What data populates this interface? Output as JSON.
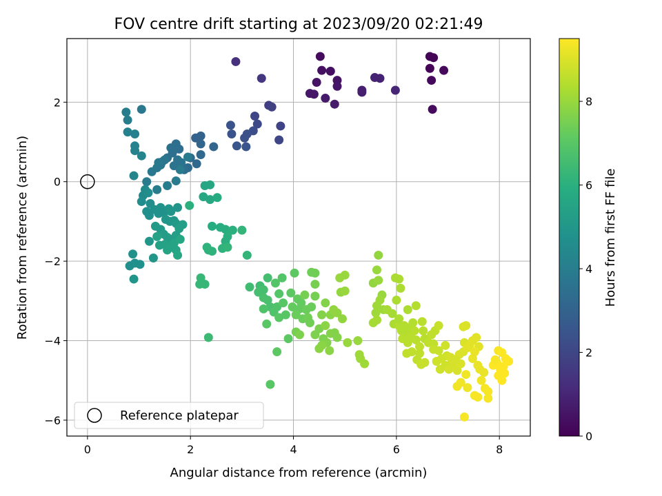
{
  "chart_data": {
    "type": "scatter",
    "title": "FOV centre drift starting at 2023/09/20 02:21:49",
    "xlabel": "Angular distance from reference (arcmin)",
    "ylabel": "Rotation from reference (arcmin)",
    "xlim": [
      -0.4,
      8.6
    ],
    "ylim": [
      -6.4,
      3.6
    ],
    "xticks": [
      0,
      2,
      4,
      6,
      8
    ],
    "xtick_labels": [
      "0",
      "2",
      "4",
      "6",
      "8"
    ],
    "yticks": [
      -6,
      -4,
      -2,
      0,
      2
    ],
    "ytick_labels": [
      "−6",
      "−4",
      "−2",
      "0",
      "2"
    ],
    "grid": true,
    "colorbar": {
      "label": "Hours from first FF file",
      "range": [
        0,
        9.5
      ],
      "ticks": [
        0,
        2,
        4,
        6,
        8
      ],
      "tick_labels": [
        "0",
        "2",
        "4",
        "6",
        "8"
      ],
      "colormap": "viridis"
    },
    "legend": {
      "placement": "lower-left",
      "entries": [
        "Reference platepar"
      ]
    },
    "reference_point": {
      "x": 0,
      "y": 0
    },
    "points": [
      [
        6.65,
        3.15,
        0.1
      ],
      [
        6.72,
        3.12,
        0.1
      ],
      [
        6.65,
        2.85,
        0.1
      ],
      [
        6.92,
        2.8,
        0.2
      ],
      [
        6.68,
        2.55,
        0.2
      ],
      [
        6.7,
        1.82,
        0.3
      ],
      [
        4.52,
        3.15,
        0.3
      ],
      [
        4.55,
        2.8,
        0.4
      ],
      [
        4.72,
        2.78,
        0.4
      ],
      [
        4.45,
        2.5,
        0.5
      ],
      [
        4.85,
        2.55,
        0.5
      ],
      [
        4.85,
        2.4,
        0.6
      ],
      [
        4.32,
        2.22,
        0.6
      ],
      [
        4.4,
        2.2,
        0.6
      ],
      [
        4.62,
        2.1,
        0.7
      ],
      [
        4.8,
        1.95,
        0.7
      ],
      [
        5.33,
        2.3,
        0.8
      ],
      [
        5.33,
        2.25,
        0.8
      ],
      [
        5.58,
        2.62,
        0.9
      ],
      [
        5.68,
        2.6,
        0.9
      ],
      [
        5.98,
        2.3,
        1.0
      ],
      [
        2.88,
        3.02,
        1.3
      ],
      [
        3.38,
        2.6,
        1.5
      ],
      [
        3.52,
        1.92,
        1.7
      ],
      [
        3.58,
        1.88,
        1.8
      ],
      [
        3.75,
        1.4,
        1.9
      ],
      [
        3.72,
        1.05,
        2.0
      ],
      [
        3.25,
        1.65,
        2.0
      ],
      [
        3.3,
        1.45,
        2.1
      ],
      [
        3.22,
        1.28,
        2.2
      ],
      [
        3.1,
        1.2,
        2.3
      ],
      [
        3.05,
        1.1,
        2.3
      ],
      [
        2.78,
        1.42,
        2.4
      ],
      [
        2.8,
        1.2,
        2.4
      ],
      [
        2.9,
        0.9,
        2.5
      ],
      [
        3.08,
        0.88,
        2.5
      ],
      [
        0.75,
        1.75,
        4.0
      ],
      [
        0.78,
        1.55,
        4.0
      ],
      [
        1.05,
        1.82,
        3.8
      ],
      [
        0.78,
        1.25,
        4.1
      ],
      [
        0.92,
        1.2,
        4.1
      ],
      [
        0.92,
        0.9,
        4.2
      ],
      [
        0.92,
        0.78,
        4.2
      ],
      [
        1.05,
        0.65,
        4.3
      ],
      [
        0.9,
        0.15,
        4.3
      ],
      [
        2.1,
        1.1,
        3.0
      ],
      [
        2.2,
        1.15,
        3.0
      ],
      [
        2.2,
        0.95,
        3.1
      ],
      [
        2.45,
        0.88,
        3.1
      ],
      [
        2.2,
        0.68,
        3.2
      ],
      [
        2.12,
        0.45,
        3.2
      ],
      [
        2.0,
        0.6,
        3.3
      ],
      [
        1.95,
        0.35,
        3.3
      ],
      [
        1.88,
        0.3,
        3.4
      ],
      [
        1.72,
        0.95,
        3.4
      ],
      [
        1.78,
        0.82,
        3.4
      ],
      [
        1.62,
        0.85,
        3.5
      ],
      [
        1.55,
        0.6,
        3.5
      ],
      [
        1.65,
        0.72,
        3.5
      ],
      [
        1.75,
        0.55,
        3.6
      ],
      [
        1.82,
        0.48,
        3.6
      ],
      [
        1.68,
        0.4,
        3.6
      ],
      [
        1.5,
        0.55,
        3.7
      ],
      [
        1.45,
        0.5,
        3.7
      ],
      [
        1.42,
        0.42,
        3.7
      ],
      [
        1.38,
        0.48,
        3.8
      ],
      [
        1.35,
        0.35,
        3.8
      ],
      [
        1.25,
        0.25,
        3.8
      ],
      [
        1.15,
        0.0,
        3.9
      ],
      [
        1.35,
        -0.2,
        4.0
      ],
      [
        1.55,
        -0.1,
        4.0
      ],
      [
        1.72,
        0.02,
        3.9
      ],
      [
        1.8,
        0.3,
        3.9
      ],
      [
        1.95,
        0.62,
        3.9
      ],
      [
        1.08,
        -0.35,
        4.5
      ],
      [
        1.12,
        -0.2,
        4.5
      ],
      [
        1.18,
        -0.28,
        4.6
      ],
      [
        1.05,
        -0.5,
        4.6
      ],
      [
        1.22,
        -0.55,
        4.6
      ],
      [
        1.3,
        -0.7,
        4.7
      ],
      [
        1.15,
        -0.75,
        4.7
      ],
      [
        1.2,
        -0.85,
        4.7
      ],
      [
        1.42,
        -0.65,
        4.8
      ],
      [
        1.38,
        -0.8,
        4.8
      ],
      [
        1.48,
        -0.78,
        4.8
      ],
      [
        1.58,
        -0.68,
        4.9
      ],
      [
        1.62,
        -0.75,
        4.9
      ],
      [
        1.75,
        -0.65,
        4.9
      ],
      [
        1.52,
        -0.95,
        5.0
      ],
      [
        1.6,
        -1.0,
        5.0
      ],
      [
        1.68,
        -0.98,
        5.0
      ],
      [
        1.72,
        -1.05,
        5.1
      ],
      [
        1.32,
        -1.12,
        5.1
      ],
      [
        1.42,
        -1.2,
        5.1
      ],
      [
        1.48,
        -1.32,
        5.2
      ],
      [
        1.55,
        -1.4,
        5.2
      ],
      [
        1.62,
        -1.45,
        5.2
      ],
      [
        1.72,
        -1.35,
        5.3
      ],
      [
        1.78,
        -1.18,
        5.3
      ],
      [
        1.85,
        -1.08,
        5.3
      ],
      [
        1.35,
        -1.38,
        5.4
      ],
      [
        1.4,
        -1.6,
        5.4
      ],
      [
        1.5,
        -1.58,
        5.4
      ],
      [
        1.55,
        -1.72,
        5.5
      ],
      [
        1.62,
        -1.65,
        5.5
      ],
      [
        1.72,
        -1.72,
        5.5
      ],
      [
        1.68,
        -1.55,
        5.5
      ],
      [
        1.75,
        -1.85,
        5.6
      ],
      [
        1.8,
        -1.45,
        5.6
      ],
      [
        1.2,
        -1.5,
        5.0
      ],
      [
        1.28,
        -1.92,
        5.0
      ],
      [
        0.88,
        -1.82,
        4.8
      ],
      [
        0.92,
        -2.05,
        4.8
      ],
      [
        0.82,
        -2.12,
        4.7
      ],
      [
        1.02,
        -2.08,
        4.7
      ],
      [
        0.9,
        -2.45,
        4.9
      ],
      [
        2.28,
        -0.1,
        5.6
      ],
      [
        2.38,
        -0.08,
        5.6
      ],
      [
        2.25,
        -0.38,
        5.7
      ],
      [
        2.38,
        -0.45,
        5.7
      ],
      [
        2.52,
        -0.4,
        5.8
      ],
      [
        2.42,
        -1.12,
        5.8
      ],
      [
        2.58,
        -1.15,
        5.9
      ],
      [
        2.68,
        -1.2,
        5.9
      ],
      [
        2.82,
        -1.22,
        6.0
      ],
      [
        2.72,
        -1.38,
        6.0
      ],
      [
        2.68,
        -1.5,
        6.0
      ],
      [
        2.35,
        -1.72,
        6.1
      ],
      [
        2.42,
        -1.75,
        6.1
      ],
      [
        2.62,
        -1.68,
        6.1
      ],
      [
        2.72,
        -1.65,
        6.2
      ],
      [
        3.0,
        -1.22,
        6.2
      ],
      [
        3.1,
        -1.85,
        6.2
      ],
      [
        2.2,
        -2.42,
        6.3
      ],
      [
        2.18,
        -2.58,
        6.3
      ],
      [
        2.28,
        -2.58,
        6.3
      ],
      [
        2.35,
        -3.92,
        6.4
      ],
      [
        2.32,
        -1.65,
        6.1
      ],
      [
        1.98,
        -0.6,
        6.0
      ],
      [
        3.15,
        -2.65,
        6.5
      ],
      [
        3.35,
        -2.62,
        6.5
      ],
      [
        3.5,
        -2.42,
        6.6
      ],
      [
        3.42,
        -2.72,
        6.6
      ],
      [
        3.32,
        -2.78,
        6.6
      ],
      [
        3.42,
        -2.92,
        6.7
      ],
      [
        3.5,
        -2.98,
        6.7
      ],
      [
        3.55,
        -3.15,
        6.7
      ],
      [
        3.42,
        -3.2,
        6.8
      ],
      [
        3.62,
        -3.28,
        6.8
      ],
      [
        3.68,
        -3.15,
        6.8
      ],
      [
        3.72,
        -2.82,
        6.9
      ],
      [
        3.78,
        -2.42,
        6.9
      ],
      [
        3.65,
        -2.55,
        6.9
      ],
      [
        3.8,
        -3.05,
        7.0
      ],
      [
        3.72,
        -3.42,
        7.0
      ],
      [
        3.85,
        -3.35,
        7.0
      ],
      [
        3.48,
        -3.58,
        7.0
      ],
      [
        3.9,
        -3.95,
        7.1
      ],
      [
        3.55,
        -5.1,
        7.0
      ],
      [
        3.68,
        -4.28,
        7.1
      ],
      [
        4.02,
        -2.3,
        7.1
      ],
      [
        3.95,
        -2.8,
        7.1
      ],
      [
        4.08,
        -2.95,
        7.2
      ],
      [
        4.15,
        -3.05,
        7.2
      ],
      [
        3.98,
        -3.15,
        7.2
      ],
      [
        4.12,
        -3.2,
        7.2
      ],
      [
        4.25,
        -3.22,
        7.3
      ],
      [
        4.35,
        -3.15,
        7.3
      ],
      [
        4.05,
        -3.35,
        7.3
      ],
      [
        4.18,
        -3.45,
        7.3
      ],
      [
        4.28,
        -3.42,
        7.4
      ],
      [
        4.32,
        -3.55,
        7.4
      ],
      [
        4.35,
        -2.28,
        7.4
      ],
      [
        4.42,
        -2.3,
        7.4
      ],
      [
        4.42,
        -2.58,
        7.5
      ],
      [
        4.42,
        -2.88,
        7.5
      ],
      [
        4.22,
        -2.85,
        7.5
      ],
      [
        4.05,
        -3.78,
        7.5
      ],
      [
        4.12,
        -3.85,
        7.6
      ],
      [
        4.5,
        -3.7,
        7.6
      ],
      [
        4.42,
        -3.85,
        7.6
      ],
      [
        4.58,
        -3.95,
        7.6
      ],
      [
        4.72,
        -3.82,
        7.7
      ],
      [
        4.8,
        -3.8,
        7.7
      ],
      [
        4.85,
        -3.92,
        7.7
      ],
      [
        4.65,
        -4.05,
        7.7
      ],
      [
        4.55,
        -4.12,
        7.8
      ],
      [
        4.5,
        -4.2,
        7.8
      ],
      [
        4.7,
        -4.25,
        7.8
      ],
      [
        4.62,
        -3.62,
        7.8
      ],
      [
        4.72,
        -3.35,
        7.8
      ],
      [
        4.78,
        -3.22,
        7.9
      ],
      [
        4.85,
        -3.3,
        7.9
      ],
      [
        4.95,
        -3.45,
        7.9
      ],
      [
        4.92,
        -2.78,
        7.9
      ],
      [
        5.0,
        -2.75,
        8.0
      ],
      [
        4.9,
        -2.42,
        8.0
      ],
      [
        5.0,
        -2.35,
        8.0
      ],
      [
        5.05,
        -4.05,
        8.0
      ],
      [
        5.25,
        -4.0,
        8.0
      ],
      [
        5.3,
        -4.45,
        8.1
      ],
      [
        5.38,
        -4.58,
        8.1
      ],
      [
        4.62,
        -3.05,
        7.7
      ],
      [
        4.55,
        -3.35,
        7.7
      ],
      [
        5.28,
        -4.35,
        8.1
      ],
      [
        5.65,
        -1.85,
        7.9
      ],
      [
        5.55,
        -2.55,
        7.9
      ],
      [
        5.65,
        -2.48,
        8.0
      ],
      [
        5.62,
        -2.22,
        8.0
      ],
      [
        5.72,
        -2.85,
        8.0
      ],
      [
        5.68,
        -2.98,
        8.1
      ],
      [
        5.62,
        -3.12,
        8.1
      ],
      [
        5.6,
        -3.3,
        8.1
      ],
      [
        5.75,
        -3.22,
        8.1
      ],
      [
        5.55,
        -3.55,
        8.2
      ],
      [
        5.62,
        -3.48,
        8.2
      ],
      [
        5.82,
        -3.22,
        8.2
      ],
      [
        5.92,
        -3.32,
        8.2
      ],
      [
        5.98,
        -2.42,
        8.3
      ],
      [
        6.05,
        -2.45,
        8.3
      ],
      [
        6.08,
        -2.68,
        8.3
      ],
      [
        6.0,
        -2.98,
        8.3
      ],
      [
        5.95,
        -3.58,
        8.3
      ],
      [
        6.05,
        -3.62,
        8.4
      ],
      [
        6.1,
        -3.75,
        8.4
      ],
      [
        6.18,
        -3.82,
        8.4
      ],
      [
        6.25,
        -3.68,
        8.4
      ],
      [
        6.32,
        -3.55,
        8.4
      ],
      [
        6.35,
        -3.75,
        8.5
      ],
      [
        6.12,
        -3.95,
        8.5
      ],
      [
        6.22,
        -4.05,
        8.5
      ],
      [
        6.28,
        -3.9,
        8.5
      ],
      [
        6.38,
        -3.98,
        8.5
      ],
      [
        6.45,
        -4.15,
        8.6
      ],
      [
        6.2,
        -4.32,
        8.6
      ],
      [
        6.3,
        -4.28,
        8.6
      ],
      [
        6.45,
        -4.32,
        8.6
      ],
      [
        6.4,
        -4.48,
        8.6
      ],
      [
        6.55,
        -4.55,
        8.7
      ],
      [
        6.48,
        -4.6,
        8.7
      ],
      [
        6.22,
        -3.22,
        8.3
      ],
      [
        6.38,
        -3.12,
        8.4
      ],
      [
        6.5,
        -3.52,
        8.5
      ],
      [
        6.52,
        -3.75,
        8.5
      ],
      [
        6.55,
        -3.95,
        8.5
      ],
      [
        6.05,
        -3.45,
        8.3
      ],
      [
        6.15,
        -3.62,
        8.4
      ],
      [
        6.62,
        -4.05,
        8.6
      ],
      [
        6.72,
        -4.08,
        8.6
      ],
      [
        6.68,
        -3.85,
        8.6
      ],
      [
        6.75,
        -3.75,
        8.6
      ],
      [
        6.82,
        -3.62,
        8.7
      ],
      [
        6.72,
        -4.22,
        8.7
      ],
      [
        6.82,
        -4.25,
        8.7
      ],
      [
        6.88,
        -4.45,
        8.8
      ],
      [
        6.78,
        -4.52,
        8.8
      ],
      [
        6.85,
        -4.72,
        8.8
      ],
      [
        6.95,
        -4.62,
        8.8
      ],
      [
        7.02,
        -4.72,
        8.9
      ],
      [
        7.08,
        -4.52,
        8.9
      ],
      [
        7.12,
        -4.62,
        8.9
      ],
      [
        7.18,
        -4.75,
        8.9
      ],
      [
        7.25,
        -4.58,
        9.0
      ],
      [
        7.22,
        -4.35,
        9.0
      ],
      [
        7.3,
        -4.28,
        9.0
      ],
      [
        7.32,
        -4.05,
        9.0
      ],
      [
        7.35,
        -3.62,
        9.0
      ],
      [
        7.38,
        -4.18,
        9.1
      ],
      [
        7.42,
        -4.12,
        9.1
      ],
      [
        7.48,
        -4.0,
        9.1
      ],
      [
        7.55,
        -3.92,
        9.1
      ],
      [
        7.6,
        -4.15,
        9.1
      ],
      [
        7.52,
        -4.28,
        9.2
      ],
      [
        7.48,
        -4.45,
        9.2
      ],
      [
        7.58,
        -4.62,
        9.2
      ],
      [
        7.62,
        -4.72,
        9.2
      ],
      [
        7.7,
        -4.8,
        9.2
      ],
      [
        7.65,
        -5.0,
        9.3
      ],
      [
        7.35,
        -4.85,
        9.3
      ],
      [
        7.25,
        -5.05,
        9.3
      ],
      [
        7.18,
        -5.15,
        9.3
      ],
      [
        7.38,
        -5.18,
        9.3
      ],
      [
        7.52,
        -5.38,
        9.4
      ],
      [
        7.58,
        -5.42,
        9.4
      ],
      [
        7.78,
        -5.28,
        9.4
      ],
      [
        7.78,
        -5.45,
        9.4
      ],
      [
        7.72,
        -5.2,
        9.4
      ],
      [
        7.32,
        -5.92,
        9.4
      ],
      [
        7.98,
        -4.25,
        9.4
      ],
      [
        8.05,
        -4.3,
        9.5
      ],
      [
        8.12,
        -4.45,
        9.5
      ],
      [
        8.18,
        -4.52,
        9.5
      ],
      [
        7.95,
        -4.55,
        9.5
      ],
      [
        7.88,
        -4.62,
        9.5
      ],
      [
        8.02,
        -4.72,
        9.5
      ],
      [
        8.1,
        -4.82,
        9.5
      ],
      [
        8.05,
        -5.0,
        9.5
      ],
      [
        7.98,
        -4.88,
        9.5
      ],
      [
        8.08,
        -4.65,
        9.5
      ],
      [
        7.92,
        -4.48,
        9.4
      ],
      [
        6.98,
        -4.38,
        8.8
      ],
      [
        7.05,
        -4.42,
        8.9
      ],
      [
        7.15,
        -4.48,
        8.9
      ],
      [
        6.95,
        -4.12,
        8.8
      ],
      [
        7.3,
        -3.65,
        9.0
      ]
    ]
  }
}
